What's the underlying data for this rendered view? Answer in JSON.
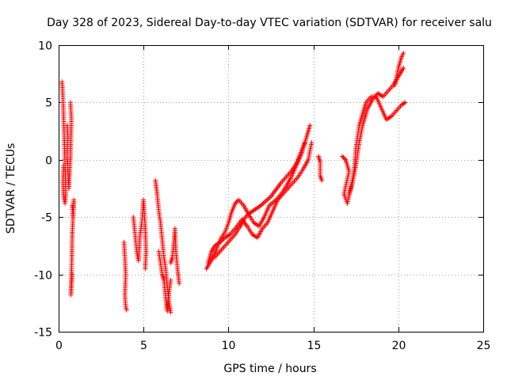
{
  "chart_data": {
    "type": "scatter",
    "title": "Day 328 of 2023, Sidereal Day-to-day VTEC variation (SDTVAR) for receiver salu",
    "xlabel": "GPS time / hours",
    "ylabel": "SDTVAR / TECUs",
    "xlim": [
      0,
      25
    ],
    "ylim": [
      -15,
      10
    ],
    "x_ticks": [
      0,
      5,
      10,
      15,
      20,
      25
    ],
    "y_ticks": [
      -15,
      -10,
      -5,
      0,
      5,
      10
    ],
    "x_tick_labels": [
      "0",
      "5",
      "10",
      "15",
      "20",
      "25"
    ],
    "y_tick_labels": [
      "-15",
      "-10",
      "-5",
      "0",
      "5",
      "10"
    ],
    "grid": true,
    "legend": "none",
    "marker": "plus",
    "color": "#ff0000",
    "series": [
      {
        "name": "SDTVAR",
        "segments": [
          [
            [
              0.2,
              6.8
            ],
            [
              0.25,
              5.5
            ],
            [
              0.3,
              3.5
            ],
            [
              0.35,
              1.0
            ],
            [
              0.4,
              -1.5
            ],
            [
              0.42,
              -3.0
            ],
            [
              0.38,
              -3.8
            ],
            [
              0.3,
              -3.2
            ],
            [
              0.25,
              -2.0
            ],
            [
              0.3,
              -0.5
            ]
          ],
          [
            [
              0.5,
              3.0
            ],
            [
              0.55,
              2.0
            ],
            [
              0.5,
              0.5
            ],
            [
              0.55,
              -1.0
            ],
            [
              0.6,
              -2.5
            ],
            [
              0.7,
              0.5
            ],
            [
              0.75,
              3.5
            ],
            [
              0.7,
              5.0
            ]
          ],
          [
            [
              0.8,
              -4.0
            ],
            [
              0.85,
              -5.0
            ],
            [
              0.9,
              -3.5
            ],
            [
              0.8,
              -6.5
            ],
            [
              0.78,
              -8.5
            ],
            [
              0.75,
              -10.5
            ],
            [
              0.72,
              -11.8
            ],
            [
              0.8,
              -10.0
            ]
          ],
          [
            [
              3.85,
              -7.2
            ],
            [
              3.9,
              -8.5
            ],
            [
              3.95,
              -10.0
            ],
            [
              3.9,
              -11.8
            ],
            [
              3.95,
              -12.8
            ],
            [
              4.0,
              -13.1
            ]
          ],
          [
            [
              4.4,
              -5.0
            ],
            [
              4.5,
              -6.5
            ],
            [
              4.6,
              -8.0
            ],
            [
              4.7,
              -8.8
            ],
            [
              4.8,
              -6.5
            ],
            [
              4.9,
              -5.5
            ],
            [
              5.0,
              -3.5
            ],
            [
              5.1,
              -6.0
            ],
            [
              5.15,
              -8.0
            ],
            [
              5.1,
              -9.5
            ]
          ],
          [
            [
              5.7,
              -1.8
            ],
            [
              5.8,
              -3.0
            ],
            [
              5.9,
              -4.5
            ],
            [
              6.0,
              -5.5
            ],
            [
              6.1,
              -7.0
            ],
            [
              6.2,
              -8.5
            ],
            [
              6.3,
              -9.5
            ],
            [
              6.4,
              -11.0
            ],
            [
              6.5,
              -12.5
            ],
            [
              6.6,
              -13.3
            ]
          ],
          [
            [
              5.9,
              -8.0
            ],
            [
              6.0,
              -9.0
            ],
            [
              6.1,
              -10.0
            ],
            [
              6.2,
              -10.5
            ],
            [
              6.3,
              -12.0
            ],
            [
              6.4,
              -13.2
            ],
            [
              6.5,
              -11.5
            ],
            [
              6.6,
              -10.5
            ]
          ],
          [
            [
              6.6,
              -9.0
            ],
            [
              6.7,
              -8.5
            ],
            [
              6.8,
              -7.0
            ],
            [
              6.85,
              -6.0
            ],
            [
              6.9,
              -8.0
            ],
            [
              7.0,
              -9.5
            ],
            [
              7.1,
              -10.8
            ]
          ],
          [
            [
              8.7,
              -9.5
            ],
            [
              8.9,
              -9.0
            ],
            [
              9.1,
              -8.5
            ],
            [
              9.3,
              -7.8
            ],
            [
              9.5,
              -7.0
            ],
            [
              9.8,
              -6.3
            ],
            [
              10.0,
              -5.5
            ],
            [
              10.2,
              -4.5
            ],
            [
              10.4,
              -3.8
            ],
            [
              10.6,
              -3.5
            ],
            [
              10.9,
              -4.0
            ],
            [
              11.2,
              -4.8
            ],
            [
              11.5,
              -5.5
            ],
            [
              11.8,
              -5.8
            ],
            [
              12.1,
              -5.0
            ],
            [
              12.4,
              -4.0
            ],
            [
              12.8,
              -3.5
            ],
            [
              13.1,
              -3.0
            ],
            [
              13.4,
              -2.3
            ],
            [
              13.7,
              -1.5
            ],
            [
              14.0,
              -0.5
            ],
            [
              14.3,
              0.5
            ],
            [
              14.6,
              2.0
            ],
            [
              14.8,
              3.0
            ]
          ],
          [
            [
              8.8,
              -9.0
            ],
            [
              9.0,
              -8.0
            ],
            [
              9.2,
              -7.5
            ],
            [
              9.5,
              -7.2
            ],
            [
              9.8,
              -6.8
            ],
            [
              10.1,
              -6.5
            ],
            [
              10.4,
              -6.0
            ],
            [
              10.8,
              -5.2
            ],
            [
              11.1,
              -5.8
            ],
            [
              11.4,
              -6.5
            ],
            [
              11.7,
              -6.8
            ],
            [
              12.0,
              -6.0
            ],
            [
              12.3,
              -5.5
            ],
            [
              12.6,
              -4.5
            ],
            [
              12.9,
              -3.5
            ],
            [
              13.2,
              -3.0
            ],
            [
              13.5,
              -2.5
            ],
            [
              13.8,
              -2.0
            ],
            [
              14.1,
              -1.5
            ],
            [
              14.4,
              -0.8
            ],
            [
              14.7,
              0.0
            ],
            [
              14.9,
              1.5
            ]
          ],
          [
            [
              9.2,
              -8.5
            ],
            [
              9.5,
              -8.0
            ],
            [
              9.8,
              -7.5
            ],
            [
              10.1,
              -7.0
            ],
            [
              10.4,
              -6.5
            ],
            [
              10.7,
              -5.8
            ],
            [
              11.0,
              -5.0
            ],
            [
              11.3,
              -4.6
            ],
            [
              11.6,
              -4.3
            ],
            [
              11.9,
              -4.0
            ],
            [
              12.2,
              -3.6
            ],
            [
              12.5,
              -3.2
            ],
            [
              12.8,
              -2.6
            ],
            [
              13.1,
              -2.0
            ],
            [
              13.4,
              -1.5
            ],
            [
              13.7,
              -1.0
            ],
            [
              14.0,
              -0.3
            ],
            [
              14.3,
              0.8
            ],
            [
              14.5,
              1.5
            ]
          ],
          [
            [
              15.3,
              0.3
            ],
            [
              15.4,
              -0.2
            ],
            [
              15.4,
              -1.4
            ],
            [
              15.5,
              -1.8
            ]
          ],
          [
            [
              16.7,
              0.3
            ],
            [
              16.9,
              0.0
            ],
            [
              17.1,
              -1.0
            ],
            [
              16.8,
              -3.0
            ],
            [
              17.0,
              -3.8
            ],
            [
              17.2,
              -2.5
            ],
            [
              17.4,
              -1.0
            ],
            [
              17.5,
              1.0
            ],
            [
              17.6,
              2.0
            ],
            [
              17.7,
              3.0
            ],
            [
              17.9,
              4.0
            ],
            [
              18.1,
              5.0
            ],
            [
              18.4,
              5.5
            ],
            [
              18.7,
              5.5
            ],
            [
              19.0,
              4.5
            ],
            [
              19.3,
              3.5
            ],
            [
              19.6,
              3.8
            ],
            [
              19.9,
              4.3
            ],
            [
              20.2,
              4.8
            ],
            [
              20.4,
              5.0
            ]
          ],
          [
            [
              17.1,
              -3.0
            ],
            [
              17.3,
              -2.0
            ],
            [
              17.5,
              -0.5
            ],
            [
              17.7,
              1.5
            ],
            [
              17.9,
              3.0
            ],
            [
              18.2,
              4.5
            ],
            [
              18.5,
              5.3
            ],
            [
              18.8,
              5.8
            ],
            [
              19.1,
              5.5
            ],
            [
              19.4,
              6.0
            ],
            [
              19.7,
              6.5
            ],
            [
              19.9,
              7.0
            ],
            [
              20.1,
              7.5
            ],
            [
              20.3,
              8.0
            ]
          ],
          [
            [
              19.8,
              6.5
            ],
            [
              20.0,
              8.0
            ],
            [
              20.2,
              9.0
            ],
            [
              20.3,
              9.3
            ]
          ]
        ]
      }
    ]
  }
}
